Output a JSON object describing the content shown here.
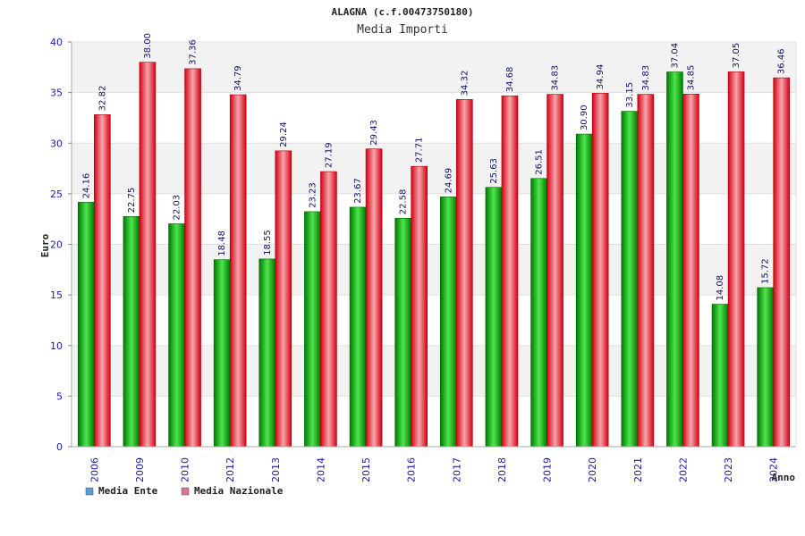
{
  "chart_data": {
    "type": "bar",
    "title": "ALAGNA (c.f.00473750180)",
    "subtitle": "Media Importi",
    "xlabel": "Anno",
    "ylabel": "Euro",
    "ylim": [
      0,
      40
    ],
    "yticks": [
      0,
      5,
      10,
      15,
      20,
      25,
      30,
      35,
      40
    ],
    "grid": true,
    "legend_position": "bottom-left",
    "categories": [
      "2006",
      "2009",
      "2010",
      "2012",
      "2013",
      "2014",
      "2015",
      "2016",
      "2017",
      "2018",
      "2019",
      "2020",
      "2021",
      "2022",
      "2023",
      "2024"
    ],
    "series": [
      {
        "name": "Media Ente",
        "color": "#00aa00",
        "legend_color": "#5b9bd5",
        "values": [
          24.16,
          22.75,
          22.03,
          18.48,
          18.55,
          23.23,
          23.67,
          22.58,
          24.69,
          25.63,
          26.51,
          30.9,
          33.15,
          37.04,
          14.08,
          15.72
        ],
        "labels": [
          "24.16",
          "22.75",
          "22.03",
          "18.48",
          "18.55",
          "23.23",
          "23.67",
          "22.58",
          "24.69",
          "25.63",
          "26.51",
          "30.90",
          "33.15",
          "37.04",
          "14.08",
          "15.72"
        ]
      },
      {
        "name": "Media Nazionale",
        "color": "#e8101e",
        "legend_color": "#d9739a",
        "values": [
          32.82,
          38.0,
          37.36,
          34.79,
          29.24,
          27.19,
          29.43,
          27.71,
          34.32,
          34.68,
          34.83,
          34.94,
          34.83,
          34.85,
          37.05,
          36.46
        ],
        "labels": [
          "32.82",
          "38.00",
          "37.36",
          "34.79",
          "29.24",
          "27.19",
          "29.43",
          "27.71",
          "34.32",
          "34.68",
          "34.83",
          "34.94",
          "34.83",
          "34.85",
          "37.05",
          "36.46"
        ]
      }
    ]
  }
}
